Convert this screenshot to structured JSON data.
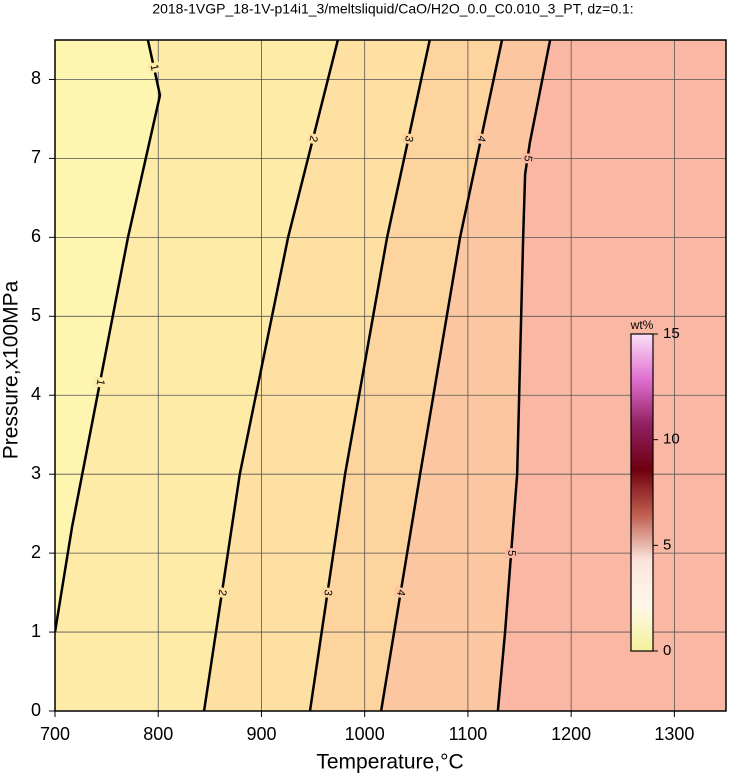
{
  "chart_data": {
    "type": "contour",
    "title": "2018-1VGP_18-1V-p14i1_3/meltsliquid/CaO/H2O_0.0_C0.010_3_PT, dz=0.1:",
    "xlabel": "Temperature,°C",
    "ylabel": "Pressure,x100MPa",
    "xlim": [
      700,
      1350
    ],
    "ylim": [
      0,
      8.5
    ],
    "xticks": [
      700,
      800,
      900,
      1000,
      1100,
      1200,
      1300
    ],
    "yticks": [
      0,
      1,
      2,
      3,
      4,
      5,
      6,
      7,
      8
    ],
    "grid": true,
    "base_fill": "#fef5b0",
    "contours": [
      {
        "level": 1,
        "color": "#000000",
        "fill": "#feeba8",
        "T": [
          700,
          716.5,
          770.7,
          801.7,
          790
        ],
        "P": [
          1.0,
          2.33,
          6.0,
          7.8,
          8.5
        ]
      },
      {
        "level": 2,
        "color": "#000000",
        "fill": "#fde0a2",
        "T": [
          844.4,
          879,
          925.8,
          974
        ],
        "P": [
          0,
          3.0,
          6.0,
          8.5
        ]
      },
      {
        "level": 3,
        "color": "#000000",
        "fill": "#fdd39e",
        "T": [
          947,
          981,
          1021.7,
          1063
        ],
        "P": [
          0,
          3.0,
          6.0,
          8.5
        ]
      },
      {
        "level": 4,
        "color": "#000000",
        "fill": "#fcc7a0",
        "T": [
          1015.9,
          1053.7,
          1092.4,
          1133
        ],
        "P": [
          0,
          3.0,
          6.0,
          8.5
        ]
      },
      {
        "level": 5,
        "color": "#000000",
        "fill": "#fab8a4",
        "T": [
          1129,
          1136,
          1147.7,
          1153.5,
          1155.4,
          1160,
          1179.6
        ],
        "P": [
          0,
          1.0,
          3.0,
          6.0,
          6.8,
          7.2,
          8.5
        ]
      }
    ],
    "colorbar": {
      "label": "wt%",
      "lim": [
        0,
        15
      ],
      "ticks": [
        0,
        5,
        10,
        15
      ],
      "colors": [
        "#f4f09a",
        "#fff8e8",
        "#fce4dc",
        "#c06050",
        "#700010",
        "#902060",
        "#e070d0",
        "#fce0f8"
      ]
    }
  }
}
